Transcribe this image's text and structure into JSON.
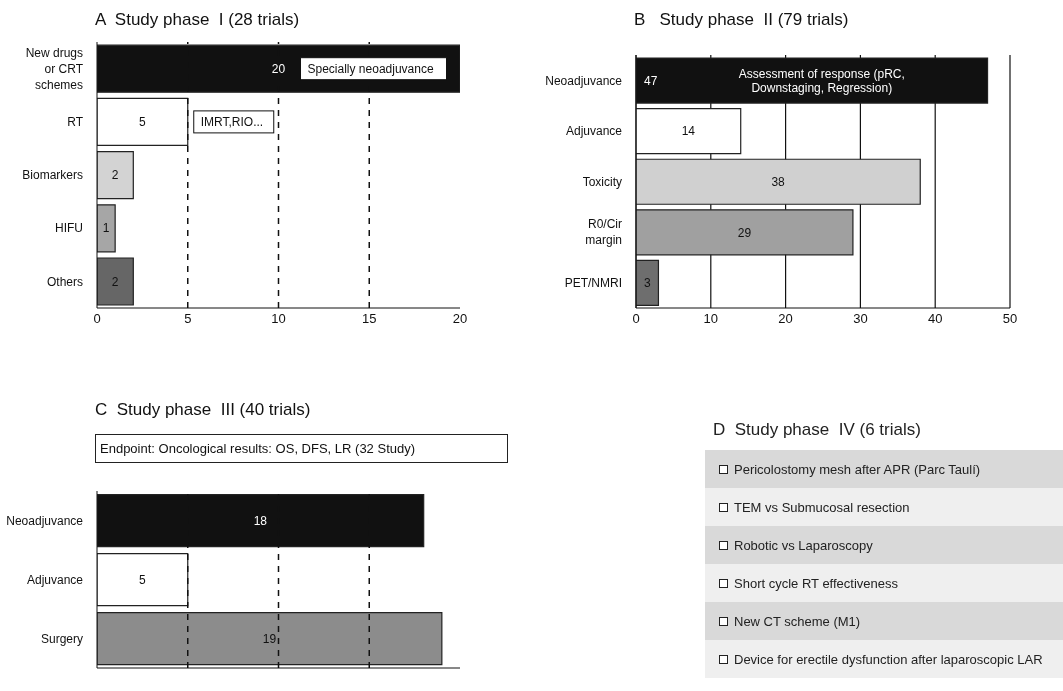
{
  "chart_data": [
    {
      "type": "bar",
      "orientation": "horizontal",
      "title": "A  Study phase  I (28 trials)",
      "categories": [
        "New drugs or CRT schemes",
        "RT",
        "Biomarkers",
        "HIFU",
        "Others"
      ],
      "values": [
        20,
        5,
        2,
        1,
        2
      ],
      "colors": [
        "#111111",
        "#ffffff",
        "#d3d3d3",
        "#a6a6a6",
        "#666666"
      ],
      "xlim": [
        0,
        20
      ],
      "xticks": [
        0,
        5,
        10,
        15,
        20
      ],
      "data_labels": true,
      "annotations": [
        "Specially neoadjuvance",
        "IMRT,RIO..."
      ],
      "ref_lines": [
        {
          "axis": "x",
          "value": 5,
          "line_style": "dashed",
          "color": "#111111"
        },
        {
          "axis": "x",
          "value": 10,
          "line_style": "dashed",
          "color": "#111111"
        },
        {
          "axis": "x",
          "value": 15,
          "line_style": "dashed",
          "color": "#111111"
        }
      ]
    },
    {
      "type": "bar",
      "orientation": "horizontal",
      "title": "B   Study phase  II (79 trials)",
      "categories": [
        "Neoadjuvance",
        "Adjuvance",
        "Toxicity",
        "R0/Cir margin",
        "PET/NMRI"
      ],
      "values": [
        47,
        14,
        38,
        29,
        3
      ],
      "colors": [
        "#111111",
        "#ffffff",
        "#d0d0d0",
        "#a0a0a0",
        "#6e6e6e"
      ],
      "xlim": [
        0,
        50
      ],
      "xticks": [
        0,
        10,
        20,
        30,
        40,
        50
      ],
      "grid": "x",
      "data_labels": true,
      "annotations": [
        "Assessment of response (pRC, Downstaging, Regression)"
      ]
    },
    {
      "type": "bar",
      "orientation": "horizontal",
      "title": "C  Study phase  III (40 trials)",
      "categories": [
        "Neoadjuvance",
        "Adjuvance",
        "Surgery"
      ],
      "values": [
        18,
        5,
        19
      ],
      "colors": [
        "#111111",
        "#ffffff",
        "#8c8c8c"
      ],
      "xlim": [
        0,
        20
      ],
      "tick_labels": "y",
      "data_labels": true,
      "annotations": [
        "Endpoint: Oncological results: OS, DFS, LR (32 Study)"
      ],
      "ref_lines": [
        {
          "axis": "x",
          "value": 5,
          "line_style": "dashed",
          "color": "#111111"
        },
        {
          "axis": "x",
          "value": 10,
          "line_style": "dashed",
          "color": "#111111"
        },
        {
          "axis": "x",
          "value": 15,
          "line_style": "dashed",
          "color": "#111111"
        }
      ]
    },
    {
      "type": "other",
      "title": "D  Study phase  IV (6 trials)",
      "annotations": [
        "Pericolostomy mesh after APR (Parc Taulí)",
        "TEM vs Submucosal resection",
        "Robotic vs Laparoscopy",
        "Short cycle RT effectiveness",
        "New CT scheme (M1)",
        "Device for erectile dysfunction after laparoscopic LAR"
      ]
    }
  ]
}
